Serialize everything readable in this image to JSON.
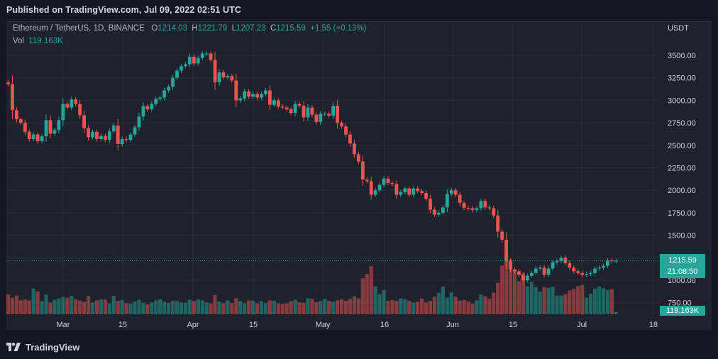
{
  "header": {
    "published": "Published on TradingView.com, Jul 09, 2022 02:51 UTC"
  },
  "legend": {
    "symbol": "Ethereum / TetherUS, 1D, BINANCE",
    "o_label": "O",
    "o": "1214.03",
    "h_label": "H",
    "h": "1221.79",
    "l_label": "L",
    "l": "1207.23",
    "c_label": "C",
    "c": "1215.59",
    "change": "+1.55 (+0.13%)",
    "vol_label": "Vol",
    "vol": "119.163K"
  },
  "axis": {
    "currency": "USDT",
    "price_ticks": [
      "3500.00",
      "3250.00",
      "3000.00",
      "2750.00",
      "2500.00",
      "2250.00",
      "2000.00",
      "1750.00",
      "1500.00",
      "1250.00",
      "1000.00",
      "750.00"
    ],
    "time_ticks": [
      "Mar",
      "15",
      "Apr",
      "15",
      "May",
      "16",
      "Jun",
      "15",
      "Jul",
      "18"
    ]
  },
  "last_price": {
    "price": "1215.59",
    "countdown": "21:08:50",
    "volume": "119.163K"
  },
  "footer": {
    "brand": "TradingView"
  },
  "colors": {
    "up": "#26a69a",
    "down": "#ef5350",
    "background": "#1e222d"
  },
  "chart_data": {
    "type": "candlestick",
    "title": "Ethereum / TetherUS, 1D, BINANCE",
    "ylabel": "USDT",
    "ylim": [
      650,
      3750
    ],
    "price_ticks": [
      3500,
      3250,
      3000,
      2750,
      2500,
      2250,
      2000,
      1750,
      1500,
      1250,
      1000,
      750
    ],
    "x_labels": [
      "Mar",
      "15",
      "Apr",
      "15",
      "May",
      "16",
      "Jun",
      "15",
      "Jul",
      "18"
    ],
    "date_range": "2022-02-12 to 2022-07-09",
    "closes": [
      3180,
      2890,
      2790,
      2750,
      2650,
      2570,
      2620,
      2545,
      2600,
      2780,
      2630,
      2670,
      2780,
      2960,
      2920,
      3010,
      2960,
      2835,
      2690,
      2590,
      2650,
      2570,
      2605,
      2560,
      2655,
      2720,
      2515,
      2570,
      2560,
      2620,
      2700,
      2820,
      2935,
      2900,
      2960,
      3015,
      3030,
      3110,
      3150,
      3250,
      3330,
      3380,
      3400,
      3485,
      3410,
      3470,
      3520,
      3520,
      3450,
      3200,
      3310,
      3255,
      3270,
      3220,
      3000,
      3020,
      3100,
      3040,
      3070,
      3030,
      3070,
      3110,
      2950,
      3000,
      2930,
      2920,
      2900,
      2860,
      2960,
      2940,
      2810,
      2920,
      2840,
      2760,
      2850,
      2850,
      2830,
      2940,
      2750,
      2710,
      2620,
      2520,
      2400,
      2320,
      2120,
      2100,
      1950,
      2000,
      2060,
      2130,
      2080,
      2070,
      1950,
      1980,
      2020,
      1950,
      2020,
      1990,
      1970,
      1905,
      1785,
      1730,
      1750,
      1810,
      1960,
      2000,
      1950,
      1860,
      1805,
      1800,
      1780,
      1800,
      1880,
      1810,
      1800,
      1720,
      1540,
      1450,
      1210,
      1120,
      1100,
      1060,
      1000,
      1050,
      1080,
      1130,
      1140,
      1060,
      1130,
      1200,
      1215,
      1250,
      1190,
      1140,
      1100,
      1080,
      1060,
      1070,
      1080,
      1130,
      1140,
      1160,
      1220,
      1214,
      1216
    ],
    "volumes_million": [
      1080,
      900,
      1020,
      760,
      820,
      760,
      1400,
      1250,
      720,
      1080,
      640,
      780,
      860,
      950,
      900,
      1000,
      820,
      750,
      680,
      1000,
      640,
      760,
      820,
      800,
      600,
      1000,
      740,
      780,
      600,
      580,
      700,
      800,
      620,
      540,
      640,
      760,
      820,
      680,
      620,
      740,
      720,
      640,
      620,
      800,
      720,
      820,
      760,
      640,
      600,
      1050,
      700,
      600,
      760,
      620,
      880,
      720,
      600,
      760,
      740,
      600,
      720,
      600,
      760,
      740,
      600,
      560,
      600,
      720,
      800,
      660,
      620,
      880,
      840,
      660,
      720,
      840,
      740,
      680,
      760,
      820,
      740,
      840,
      980,
      880,
      1960,
      2200,
      2620,
      1520,
      1100,
      1320,
      740,
      780,
      740,
      860,
      820,
      740,
      640,
      680,
      860,
      640,
      740,
      960,
      1160,
      1500,
      900,
      1200,
      960,
      740,
      780,
      700,
      580,
      760,
      1080,
      980,
      840,
      1180,
      1720,
      2660,
      3400,
      3000,
      2380,
      1800,
      2260,
      1520,
      1760,
      1480,
      1240,
      1480,
      1440,
      1500,
      1020,
      1020,
      1100,
      1300,
      1380,
      1540,
      1600,
      900,
      1120,
      1400,
      1500,
      1420,
      1320,
      1370,
      130
    ]
  }
}
